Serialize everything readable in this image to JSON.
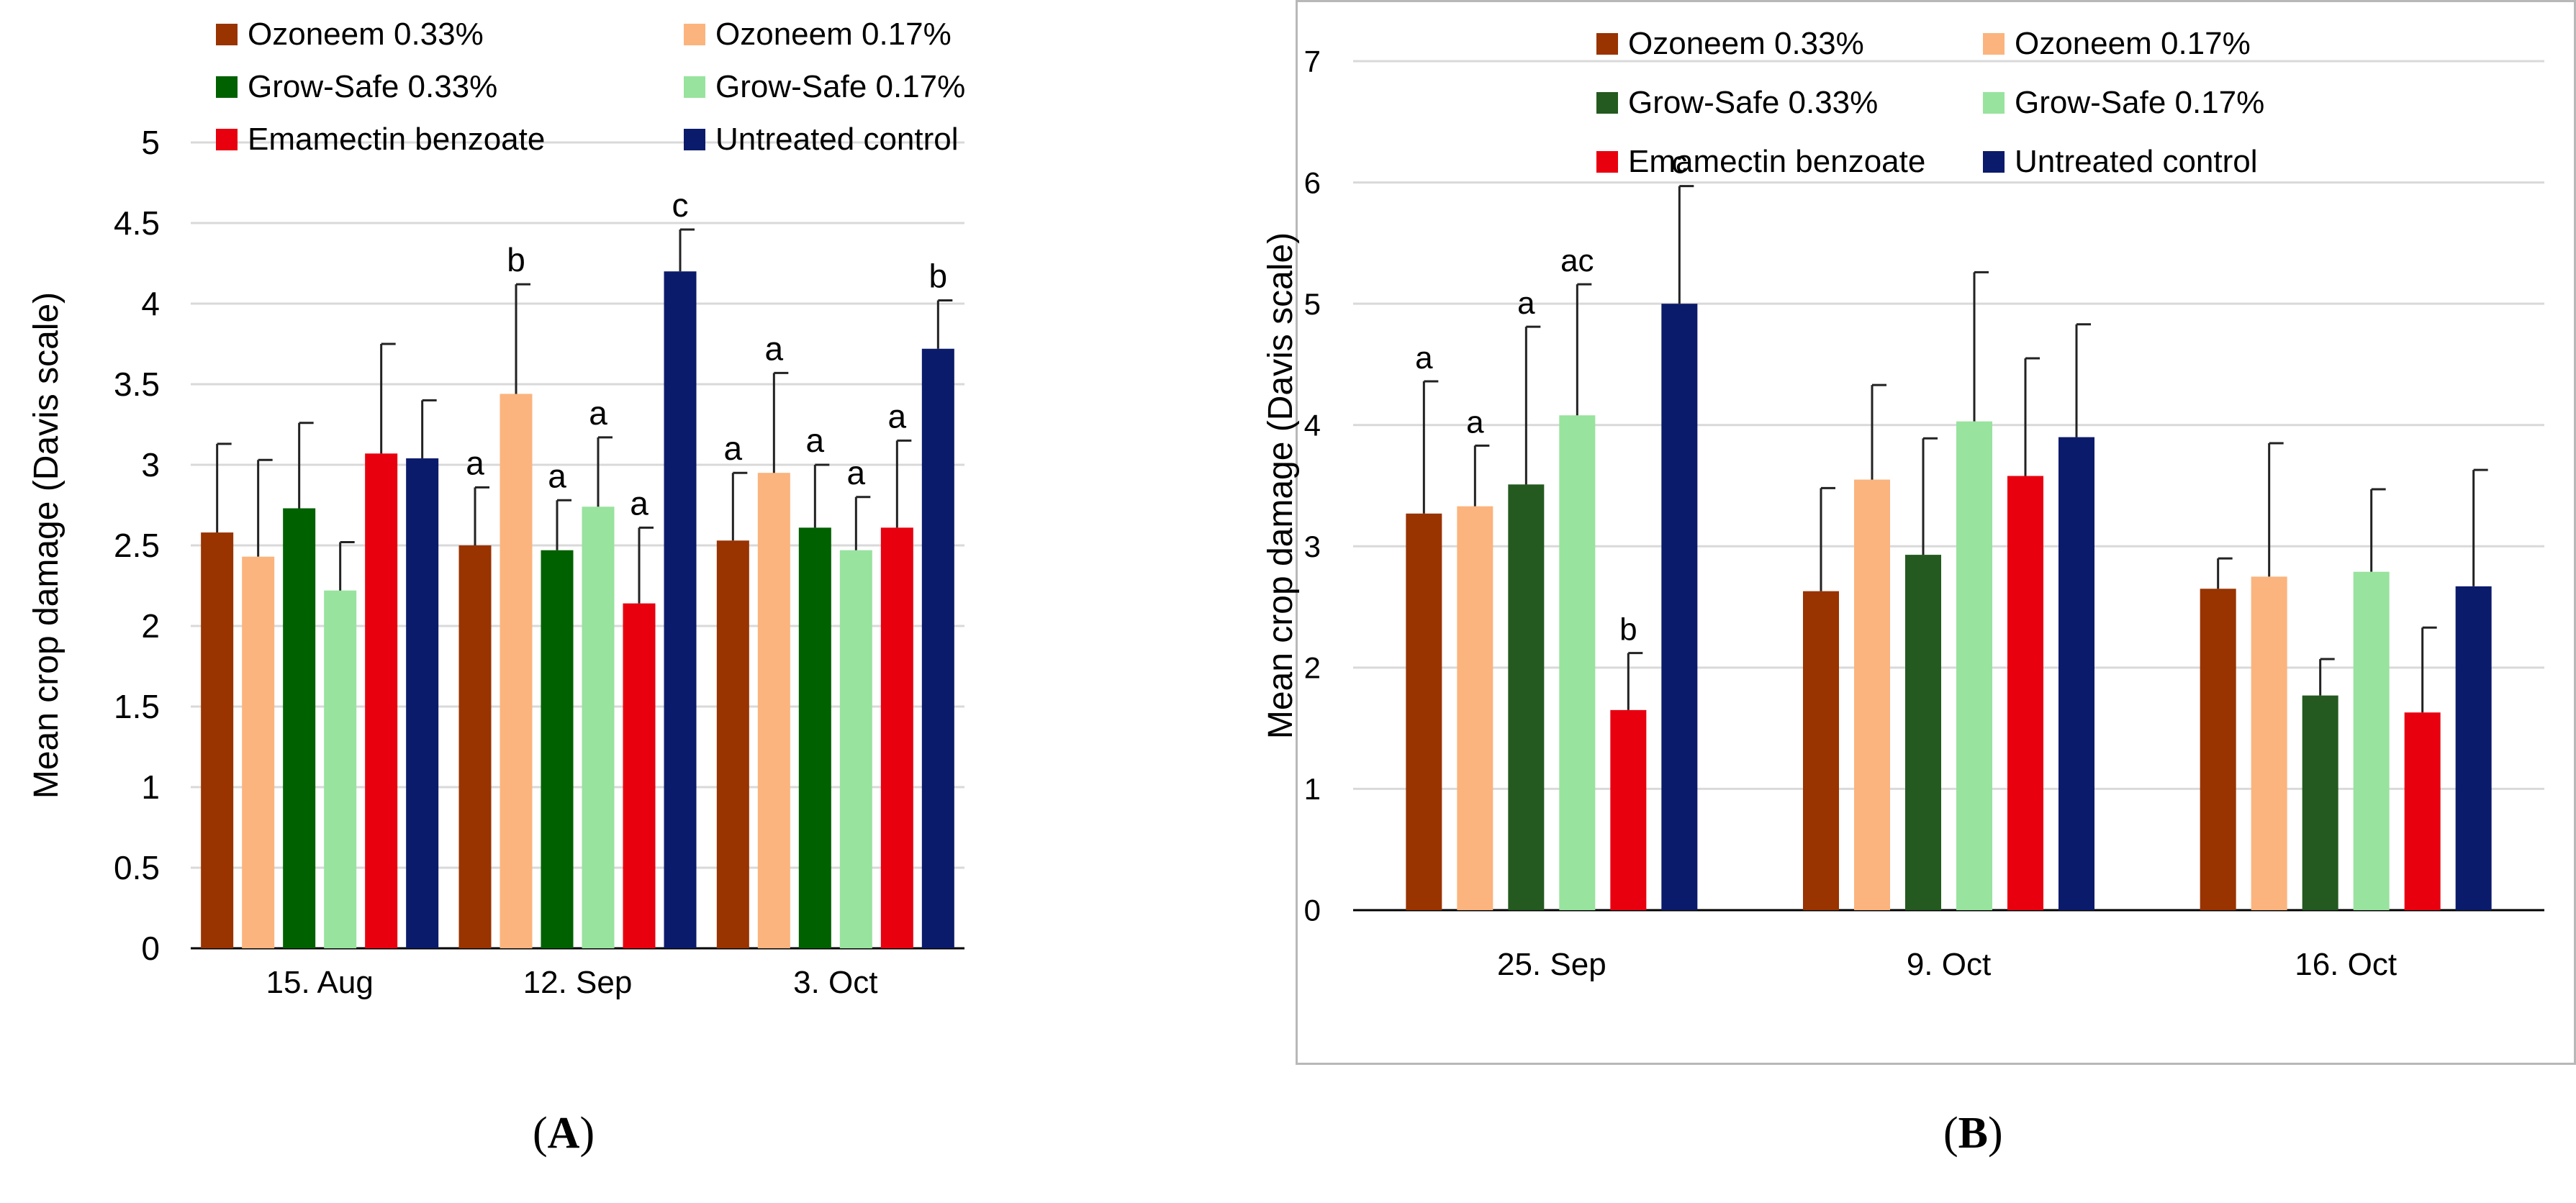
{
  "colors": {
    "ozoneem_033": "#993300",
    "ozoneem_017": "#fbb47d",
    "growsafe_033_A": "#006100",
    "growsafe_033_B": "#245a1f",
    "growsafe_017": "#98e39e",
    "emamectin": "#e8000f",
    "control": "#0b1b6b",
    "error_bar": "#222222",
    "gridline": "#d9d9d9",
    "axis": "#000000"
  },
  "captions": {
    "a": {
      "open": "(",
      "letter": "A",
      "close": ")"
    },
    "b": {
      "open": "(",
      "letter": "B",
      "close": ")"
    }
  },
  "chart_data": [
    {
      "panel": "A",
      "type": "bar",
      "title": "",
      "xlabel": "",
      "ylabel": "Mean crop damage (Davis scale)",
      "ylim": [
        0,
        5
      ],
      "yticks": [
        "0",
        "0.5",
        "1",
        "1.5",
        "2",
        "2.5",
        "3",
        "3.5",
        "4",
        "4.5",
        "5"
      ],
      "grid": true,
      "legend_position": "top",
      "categories": [
        "15. Aug",
        "12. Sep",
        "3. Oct"
      ],
      "series": [
        {
          "name": "Ozoneem 0.33%",
          "color_key": "ozoneem_033",
          "values": [
            2.58,
            2.5,
            2.53
          ],
          "errors": [
            0.55,
            0.36,
            0.42
          ],
          "labels": [
            "",
            "a",
            "a"
          ]
        },
        {
          "name": "Ozoneem 0.17%",
          "color_key": "ozoneem_017",
          "values": [
            2.43,
            3.44,
            2.95
          ],
          "errors": [
            0.6,
            0.68,
            0.62
          ],
          "labels": [
            "",
            "b",
            "a"
          ]
        },
        {
          "name": "Grow-Safe 0.33%",
          "color_key": "growsafe_033_A",
          "values": [
            2.73,
            2.47,
            2.61
          ],
          "errors": [
            0.53,
            0.31,
            0.39
          ],
          "labels": [
            "",
            "a",
            "a"
          ]
        },
        {
          "name": "Grow-Safe 0.17%",
          "color_key": "growsafe_017",
          "values": [
            2.22,
            2.74,
            2.47
          ],
          "errors": [
            0.3,
            0.43,
            0.33
          ],
          "labels": [
            "",
            "a",
            "a"
          ]
        },
        {
          "name": "Emamectin benzoate",
          "color_key": "emamectin",
          "values": [
            3.07,
            2.14,
            2.61
          ],
          "errors": [
            0.68,
            0.47,
            0.54
          ],
          "labels": [
            "",
            "a",
            "a"
          ]
        },
        {
          "name": "Untreated control",
          "color_key": "control",
          "values": [
            3.04,
            4.2,
            3.72
          ],
          "errors": [
            0.36,
            0.26,
            0.3
          ],
          "labels": [
            "",
            "c",
            "b"
          ]
        }
      ]
    },
    {
      "panel": "B",
      "type": "bar",
      "title": "",
      "xlabel": "",
      "ylabel": "Mean crop damage (Davis scale)",
      "ylim": [
        0,
        7
      ],
      "yticks": [
        "0",
        "1",
        "2",
        "3",
        "4",
        "5",
        "6",
        "7"
      ],
      "grid": true,
      "legend_position": "top",
      "categories": [
        "25. Sep",
        "9. Oct",
        "16. Oct"
      ],
      "series": [
        {
          "name": "Ozoneem 0.33%",
          "color_key": "ozoneem_033",
          "values": [
            3.27,
            2.63,
            2.65
          ],
          "errors": [
            1.09,
            0.85,
            0.25
          ],
          "labels": [
            "a",
            "",
            ""
          ]
        },
        {
          "name": "Ozoneem 0.17%",
          "color_key": "ozoneem_017",
          "values": [
            3.33,
            3.55,
            2.75
          ],
          "errors": [
            0.5,
            0.78,
            1.1
          ],
          "labels": [
            "a",
            "",
            ""
          ]
        },
        {
          "name": "Grow-Safe 0.33%",
          "color_key": "growsafe_033_B",
          "values": [
            3.51,
            2.93,
            1.77
          ],
          "errors": [
            1.3,
            0.96,
            0.3
          ],
          "labels": [
            "a",
            "",
            ""
          ]
        },
        {
          "name": "Grow-Safe 0.17%",
          "color_key": "growsafe_017",
          "values": [
            4.08,
            4.03,
            2.79
          ],
          "errors": [
            1.08,
            1.23,
            0.68
          ],
          "labels": [
            "ac",
            "",
            ""
          ]
        },
        {
          "name": "Emamectin benzoate",
          "color_key": "emamectin",
          "values": [
            1.65,
            3.58,
            1.63
          ],
          "errors": [
            0.47,
            0.97,
            0.7
          ],
          "labels": [
            "b",
            "",
            ""
          ]
        },
        {
          "name": "Untreated control",
          "color_key": "control",
          "values": [
            5.0,
            3.9,
            2.67
          ],
          "errors": [
            0.97,
            0.93,
            0.96
          ],
          "labels": [
            "c",
            "",
            ""
          ]
        }
      ]
    }
  ]
}
